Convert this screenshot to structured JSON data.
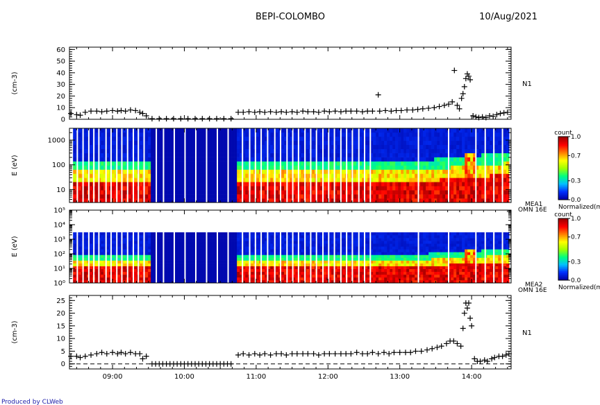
{
  "header": {
    "title": "BEPI-COLOMBO",
    "date": "10/Aug/2021"
  },
  "footer": {
    "credit": "Produced by CLWeb"
  },
  "time_axis": {
    "range_hours": [
      8.4,
      14.55
    ],
    "tick_labels": [
      "09:00",
      "10:00",
      "11:00",
      "12:00",
      "13:00",
      "14:00"
    ],
    "tick_hours": [
      9,
      10,
      11,
      12,
      13,
      14
    ]
  },
  "chart_data": [
    {
      "type": "scatter",
      "panel": "density-1",
      "ylabel": "(cm-3)",
      "right_label": "N1",
      "ylim": [
        0,
        62
      ],
      "yticks": [
        0,
        10,
        20,
        30,
        40,
        50,
        60
      ],
      "yticklabels": [
        "0",
        "10",
        "20",
        "30",
        "40",
        "50",
        "60"
      ],
      "marker": "plus",
      "points": [
        [
          8.42,
          5
        ],
        [
          8.5,
          4
        ],
        [
          8.55,
          3.5
        ],
        [
          8.62,
          6
        ],
        [
          8.7,
          7
        ],
        [
          8.78,
          7
        ],
        [
          8.85,
          6.5
        ],
        [
          8.92,
          7
        ],
        [
          9.0,
          7.5
        ],
        [
          9.07,
          7
        ],
        [
          9.12,
          7.5
        ],
        [
          9.18,
          7
        ],
        [
          9.25,
          8
        ],
        [
          9.32,
          7.5
        ],
        [
          9.38,
          6
        ],
        [
          9.42,
          5
        ],
        [
          9.47,
          3
        ],
        [
          9.55,
          0.5
        ],
        [
          9.65,
          0.5
        ],
        [
          9.75,
          0.5
        ],
        [
          9.85,
          0.5
        ],
        [
          9.95,
          0.5
        ],
        [
          10.05,
          0.5
        ],
        [
          10.15,
          0.5
        ],
        [
          10.25,
          0.5
        ],
        [
          10.35,
          0.5
        ],
        [
          10.45,
          0.5
        ],
        [
          10.55,
          0.5
        ],
        [
          10.65,
          0.5
        ],
        [
          10.75,
          6
        ],
        [
          10.82,
          6
        ],
        [
          10.9,
          6.5
        ],
        [
          10.98,
          6
        ],
        [
          11.05,
          6.5
        ],
        [
          11.12,
          6
        ],
        [
          11.2,
          6.5
        ],
        [
          11.28,
          6
        ],
        [
          11.35,
          6.5
        ],
        [
          11.42,
          6
        ],
        [
          11.5,
          6.5
        ],
        [
          11.57,
          6
        ],
        [
          11.65,
          7
        ],
        [
          11.72,
          6.5
        ],
        [
          11.8,
          6.5
        ],
        [
          11.87,
          6
        ],
        [
          11.95,
          7
        ],
        [
          12.02,
          6.5
        ],
        [
          12.1,
          7
        ],
        [
          12.18,
          6.5
        ],
        [
          12.25,
          7
        ],
        [
          12.32,
          7
        ],
        [
          12.4,
          7
        ],
        [
          12.48,
          6.5
        ],
        [
          12.55,
          7
        ],
        [
          12.62,
          7
        ],
        [
          12.7,
          21
        ],
        [
          12.72,
          7
        ],
        [
          12.8,
          7.5
        ],
        [
          12.88,
          7
        ],
        [
          12.95,
          7.5
        ],
        [
          13.02,
          7.5
        ],
        [
          13.1,
          8
        ],
        [
          13.18,
          8
        ],
        [
          13.25,
          8.5
        ],
        [
          13.32,
          9
        ],
        [
          13.4,
          9.5
        ],
        [
          13.48,
          10
        ],
        [
          13.55,
          11
        ],
        [
          13.62,
          12
        ],
        [
          13.68,
          13
        ],
        [
          13.73,
          15
        ],
        [
          13.76,
          42
        ],
        [
          13.8,
          12
        ],
        [
          13.83,
          9
        ],
        [
          13.86,
          18
        ],
        [
          13.88,
          22
        ],
        [
          13.9,
          28
        ],
        [
          13.92,
          35
        ],
        [
          13.94,
          39
        ],
        [
          13.96,
          37
        ],
        [
          13.98,
          34
        ],
        [
          14.02,
          3
        ],
        [
          14.06,
          2
        ],
        [
          14.1,
          1.5
        ],
        [
          14.15,
          2
        ],
        [
          14.2,
          1.5
        ],
        [
          14.25,
          3
        ],
        [
          14.3,
          2.5
        ],
        [
          14.35,
          4
        ],
        [
          14.4,
          5
        ],
        [
          14.45,
          5.5
        ],
        [
          14.5,
          6
        ]
      ]
    },
    {
      "type": "heatmap",
      "panel": "spectrogram-mea1",
      "ylabel": "E (eV)",
      "yscale": "log",
      "ylim": [
        3,
        3000
      ],
      "yticks": [
        10,
        100,
        1000
      ],
      "yticklabels": [
        "10",
        "100",
        "1000"
      ],
      "instrument_label": "MEA1",
      "mode_label": "OMN 16E",
      "colorbar": {
        "title": "count",
        "label": "Normalized(m",
        "ticks": [
          0.0,
          0.3,
          0.7,
          1.0
        ],
        "ticklabels": [
          "0.0",
          "0.3",
          "0.7",
          "1.0"
        ],
        "colors": [
          "#0000a0",
          "#0030ff",
          "#00c0ff",
          "#00ff80",
          "#a0ff00",
          "#ffff00",
          "#ff8000",
          "#ff0000",
          "#a00000"
        ]
      },
      "low_energy_profile": {
        "quiet_intervals": [
          [
            9.5,
            10.72
          ]
        ],
        "burst_hours": [
          13.92,
          13.98
        ]
      }
    },
    {
      "type": "heatmap",
      "panel": "spectrogram-mea2",
      "ylabel": "E (eV)",
      "yscale": "log",
      "ylim": [
        1,
        100000
      ],
      "yticks": [
        1,
        10,
        100,
        1000,
        10000,
        100000
      ],
      "yticklabels": [
        "10⁰",
        "10¹",
        "10²",
        "10³",
        "10⁴",
        "10⁵"
      ],
      "instrument_label": "MEA2",
      "mode_label": "OMN 16E",
      "colorbar": {
        "title": "count",
        "label": "Normalized(m",
        "ticks": [
          0.0,
          0.3,
          0.7,
          1.0
        ],
        "ticklabels": [
          "0.0",
          "0.3",
          "0.7",
          "1.0"
        ],
        "colors": [
          "#0000a0",
          "#0030ff",
          "#00c0ff",
          "#00ff80",
          "#a0ff00",
          "#ffff00",
          "#ff8000",
          "#ff0000",
          "#a00000"
        ]
      },
      "low_energy_profile": {
        "quiet_intervals": [
          [
            9.5,
            10.72
          ]
        ],
        "burst_hours": [
          13.92,
          13.98
        ]
      }
    },
    {
      "type": "scatter",
      "panel": "density-2",
      "ylabel": "(cm-3)",
      "right_label": "N1",
      "ylim": [
        -2,
        27
      ],
      "yticks": [
        0,
        5,
        10,
        15,
        20,
        25
      ],
      "yticklabels": [
        "0",
        "5",
        "10",
        "15",
        "20",
        "25"
      ],
      "marker": "plus",
      "zero_line": true,
      "points": [
        [
          8.42,
          3
        ],
        [
          8.5,
          3
        ],
        [
          8.55,
          2.5
        ],
        [
          8.62,
          3
        ],
        [
          8.7,
          3.5
        ],
        [
          8.78,
          4
        ],
        [
          8.85,
          4.5
        ],
        [
          8.92,
          4
        ],
        [
          9.0,
          4.5
        ],
        [
          9.07,
          4
        ],
        [
          9.12,
          4.5
        ],
        [
          9.18,
          4
        ],
        [
          9.25,
          4.5
        ],
        [
          9.32,
          4
        ],
        [
          9.38,
          4
        ],
        [
          9.42,
          2
        ],
        [
          9.47,
          3
        ],
        [
          9.55,
          0
        ],
        [
          9.6,
          0
        ],
        [
          9.65,
          0
        ],
        [
          9.7,
          0
        ],
        [
          9.75,
          0
        ],
        [
          9.8,
          0
        ],
        [
          9.85,
          0
        ],
        [
          9.9,
          0
        ],
        [
          9.95,
          0
        ],
        [
          10.0,
          0
        ],
        [
          10.05,
          0
        ],
        [
          10.1,
          0
        ],
        [
          10.15,
          0
        ],
        [
          10.2,
          0
        ],
        [
          10.25,
          0
        ],
        [
          10.3,
          0
        ],
        [
          10.35,
          0
        ],
        [
          10.4,
          0
        ],
        [
          10.45,
          0
        ],
        [
          10.5,
          0
        ],
        [
          10.55,
          0
        ],
        [
          10.6,
          0
        ],
        [
          10.65,
          0
        ],
        [
          10.75,
          3.5
        ],
        [
          10.82,
          4
        ],
        [
          10.9,
          3.5
        ],
        [
          10.98,
          4
        ],
        [
          11.05,
          3.5
        ],
        [
          11.12,
          4
        ],
        [
          11.2,
          3.5
        ],
        [
          11.28,
          4
        ],
        [
          11.35,
          4
        ],
        [
          11.42,
          3.5
        ],
        [
          11.5,
          4
        ],
        [
          11.57,
          4
        ],
        [
          11.65,
          4
        ],
        [
          11.72,
          4
        ],
        [
          11.8,
          4
        ],
        [
          11.87,
          3.5
        ],
        [
          11.95,
          4
        ],
        [
          12.02,
          4
        ],
        [
          12.1,
          4
        ],
        [
          12.18,
          4
        ],
        [
          12.25,
          4
        ],
        [
          12.32,
          4
        ],
        [
          12.4,
          4.5
        ],
        [
          12.48,
          4
        ],
        [
          12.55,
          4
        ],
        [
          12.62,
          4.5
        ],
        [
          12.7,
          4
        ],
        [
          12.78,
          4.5
        ],
        [
          12.85,
          4
        ],
        [
          12.92,
          4.5
        ],
        [
          13.0,
          4.5
        ],
        [
          13.08,
          4.5
        ],
        [
          13.15,
          4.5
        ],
        [
          13.22,
          5
        ],
        [
          13.3,
          5
        ],
        [
          13.38,
          5.5
        ],
        [
          13.45,
          6
        ],
        [
          13.52,
          6.5
        ],
        [
          13.58,
          7
        ],
        [
          13.65,
          8
        ],
        [
          13.7,
          9
        ],
        [
          13.75,
          9
        ],
        [
          13.8,
          8
        ],
        [
          13.85,
          7
        ],
        [
          13.88,
          14
        ],
        [
          13.9,
          20
        ],
        [
          13.92,
          24
        ],
        [
          13.94,
          22
        ],
        [
          13.96,
          24
        ],
        [
          13.98,
          18
        ],
        [
          14.0,
          15
        ],
        [
          14.04,
          2
        ],
        [
          14.08,
          1
        ],
        [
          14.12,
          1
        ],
        [
          14.18,
          1.5
        ],
        [
          14.22,
          1
        ],
        [
          14.28,
          2
        ],
        [
          14.32,
          2.5
        ],
        [
          14.38,
          3
        ],
        [
          14.43,
          3
        ],
        [
          14.48,
          3.5
        ],
        [
          14.52,
          4
        ]
      ]
    }
  ]
}
